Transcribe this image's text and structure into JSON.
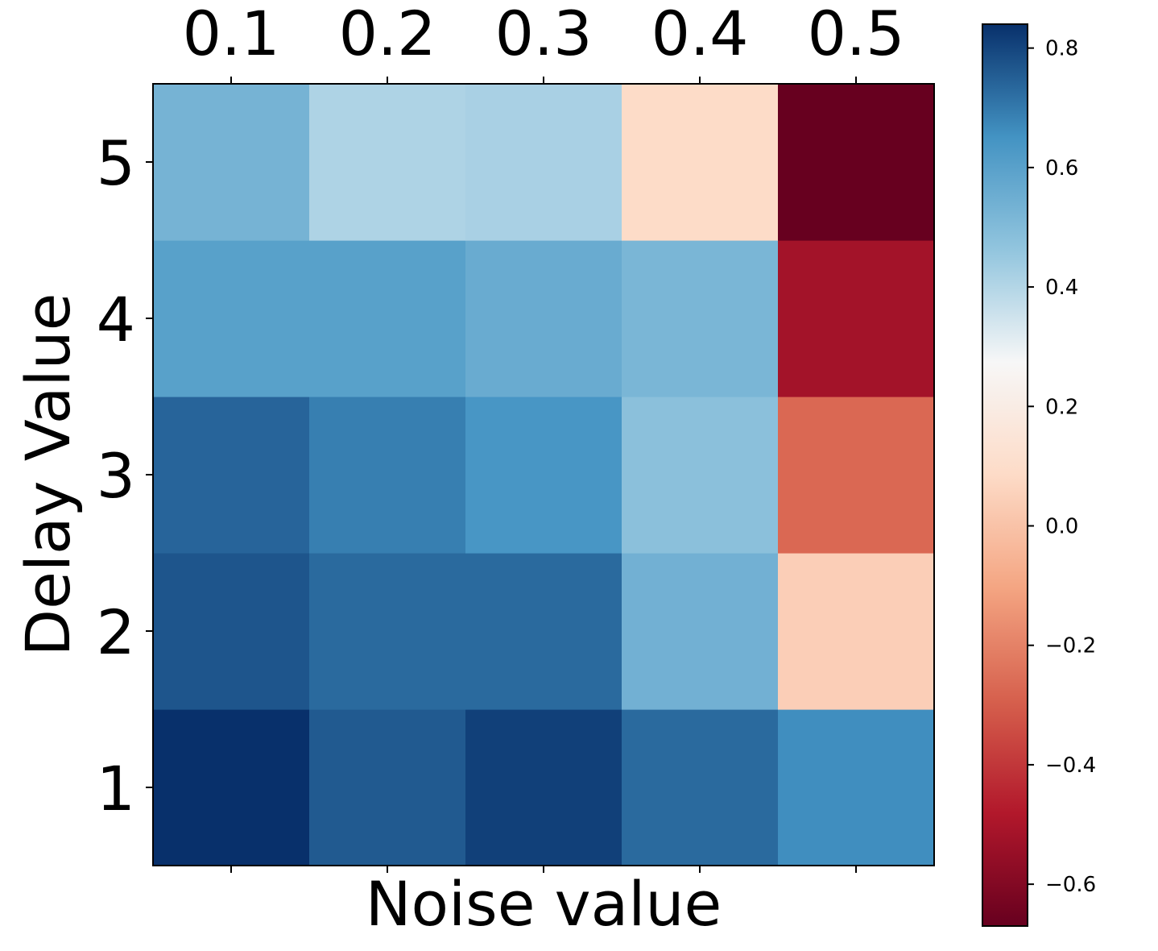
{
  "chart_data": {
    "type": "heatmap",
    "title": "",
    "xlabel": "Noise value",
    "ylabel": "Delay Value",
    "x_categories": [
      "0.1",
      "0.2",
      "0.3",
      "0.4",
      "0.5"
    ],
    "y_categories": [
      "1",
      "2",
      "3",
      "4",
      "5"
    ],
    "x_axis_position": "top",
    "values_by_delay": {
      "1": [
        0.84,
        0.76,
        0.81,
        0.73,
        0.66
      ],
      "2": [
        0.77,
        0.73,
        0.73,
        0.54,
        0.04
      ],
      "3": [
        0.74,
        0.69,
        0.64,
        0.48,
        -0.27
      ],
      "4": [
        0.6,
        0.6,
        0.56,
        0.52,
        -0.52
      ],
      "5": [
        0.53,
        0.41,
        0.42,
        0.09,
        -0.67
      ]
    },
    "colormap": "RdBu",
    "color_range": [
      -0.67,
      0.84
    ],
    "colorbar": {
      "ticks": [
        0.8,
        0.6,
        0.4,
        0.2,
        0.0,
        -0.2,
        -0.4,
        -0.6
      ],
      "tick_labels": [
        "0.8",
        "0.6",
        "0.4",
        "0.2",
        "0.0",
        "−0.2",
        "−0.4",
        "−0.6"
      ],
      "position": "right"
    },
    "grid": false
  }
}
